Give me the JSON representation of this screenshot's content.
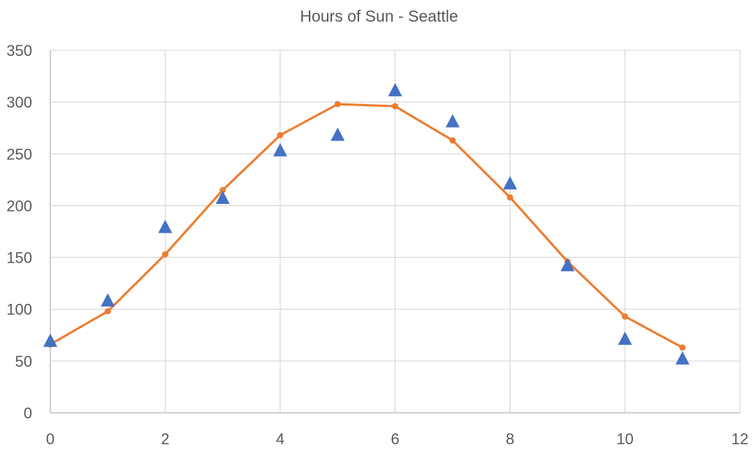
{
  "chart_data": {
    "type": "scatter",
    "title": "Hours of Sun - Seattle",
    "xlim": [
      0,
      12
    ],
    "ylim": [
      0,
      350
    ],
    "x_ticks": [
      "0",
      "2",
      "4",
      "6",
      "8",
      "10",
      "12"
    ],
    "y_ticks": [
      "0",
      "50",
      "100",
      "150",
      "200",
      "250",
      "300",
      "350"
    ],
    "grid": true,
    "legend": "none",
    "series": [
      {
        "type": "scatter",
        "marker": "triangle",
        "color": "#4472C4",
        "x": [
          0,
          1,
          2,
          3,
          4,
          5,
          6,
          7,
          8,
          9,
          10,
          11
        ],
        "y": [
          69,
          108,
          179,
          207,
          253,
          268,
          311,
          281,
          221,
          142,
          71,
          52
        ]
      },
      {
        "type": "line",
        "marker": "circle",
        "color": "#ED7D31",
        "x": [
          0,
          1,
          2,
          3,
          4,
          5,
          6,
          7,
          8,
          9,
          10,
          11
        ],
        "y": [
          66,
          98,
          153,
          215,
          268,
          298,
          296,
          263,
          208,
          146,
          93,
          63
        ]
      }
    ]
  }
}
